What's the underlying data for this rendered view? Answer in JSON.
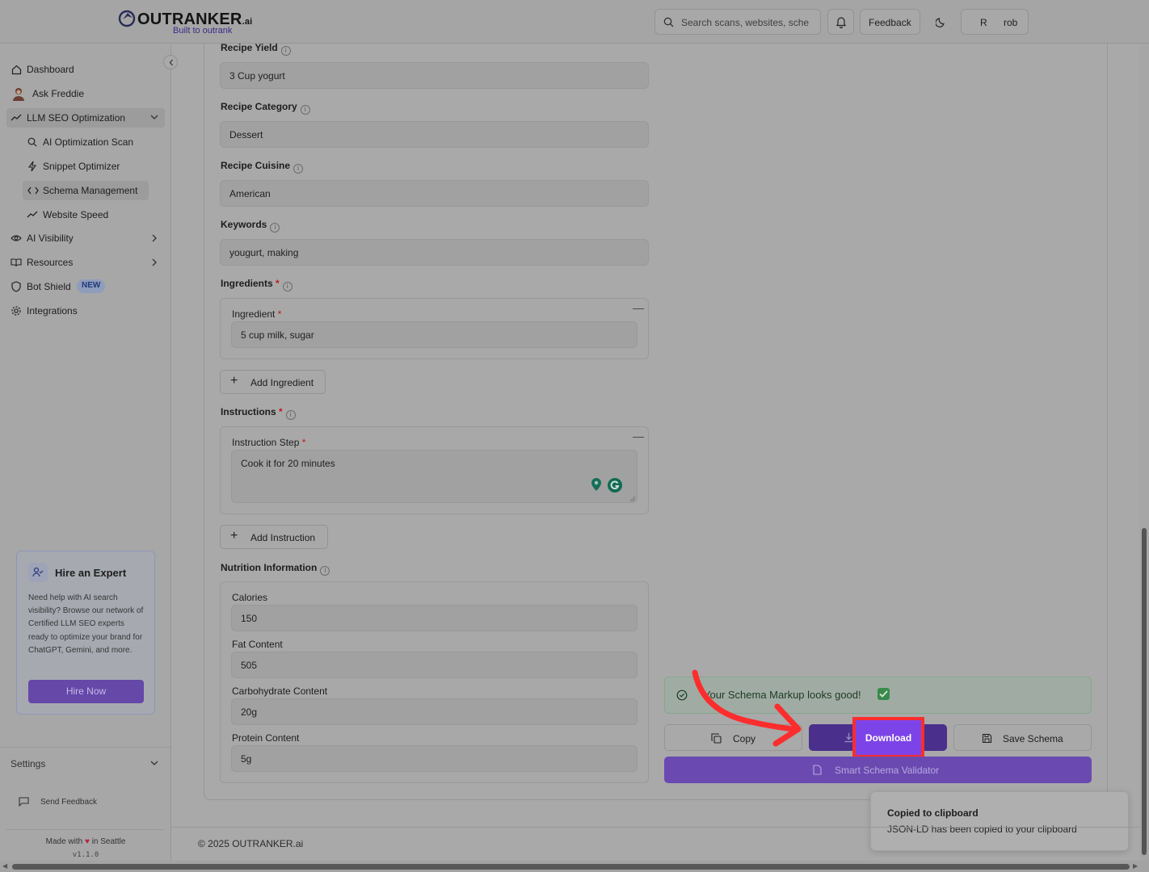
{
  "header": {
    "logo_text": "OUTRANKER",
    "logo_suffix": ".ai",
    "logo_tagline": "Built to outrank",
    "search_placeholder": "Search scans, websites, sche",
    "feedback_label": "Feedback",
    "user_initial": "R",
    "user_name": "rob"
  },
  "sidebar": {
    "items": [
      {
        "label": "Dashboard"
      },
      {
        "label": "Ask Freddie"
      },
      {
        "label": "LLM SEO Optimization"
      },
      {
        "label": "AI Optimization Scan"
      },
      {
        "label": "Snippet Optimizer"
      },
      {
        "label": "Schema Management"
      },
      {
        "label": "Website Speed"
      },
      {
        "label": "AI Visibility"
      },
      {
        "label": "Resources"
      },
      {
        "label": "Bot Shield",
        "badge": "NEW"
      },
      {
        "label": "Integrations"
      }
    ],
    "expert_card": {
      "title": "Hire an Expert",
      "text": "Need help with AI search visibility? Browse our network of Certified LLM SEO experts ready to optimize your brand for ChatGPT, Gemini, and more.",
      "button": "Hire Now"
    },
    "settings_label": "Settings",
    "send_feedback_label": "Send Feedback",
    "made_with_left": "Made with",
    "made_with_right": "in Seattle",
    "version": "v1.1.0"
  },
  "form": {
    "recipe_yield": {
      "label": "Recipe Yield",
      "value": "3 Cup yogurt"
    },
    "recipe_category": {
      "label": "Recipe Category",
      "value": "Dessert"
    },
    "recipe_cuisine": {
      "label": "Recipe Cuisine",
      "value": "American"
    },
    "keywords": {
      "label": "Keywords",
      "value": "yougurt, making"
    },
    "ingredients": {
      "label": "Ingredients",
      "item_label": "Ingredient",
      "item_value": "5 cup milk, sugar",
      "add_label": "Add Ingredient"
    },
    "instructions": {
      "label": "Instructions",
      "item_label": "Instruction Step",
      "item_value": "Cook it for 20 minutes",
      "add_label": "Add Instruction"
    },
    "nutrition": {
      "label": "Nutrition Information",
      "fields": [
        {
          "label": "Calories",
          "value": "150"
        },
        {
          "label": "Fat Content",
          "value": "505"
        },
        {
          "label": "Carbohydrate Content",
          "value": "20g"
        },
        {
          "label": "Protein Content",
          "value": "5g"
        }
      ]
    }
  },
  "actions": {
    "status_message": "Your Schema Markup looks good!",
    "copy_label": "Copy",
    "download_label": "Download",
    "save_label": "Save Schema",
    "validator_label": "Smart Schema Validator"
  },
  "toast": {
    "title": "Copied to clipboard",
    "message": "JSON-LD has been copied to your clipboard"
  },
  "footer": {
    "copyright": "© 2025 OUTRANKER.ai"
  },
  "colors": {
    "accent_purple": "#5a3da3",
    "annotation_red": "#ff2d2d",
    "success_green": "#1c3b27"
  }
}
